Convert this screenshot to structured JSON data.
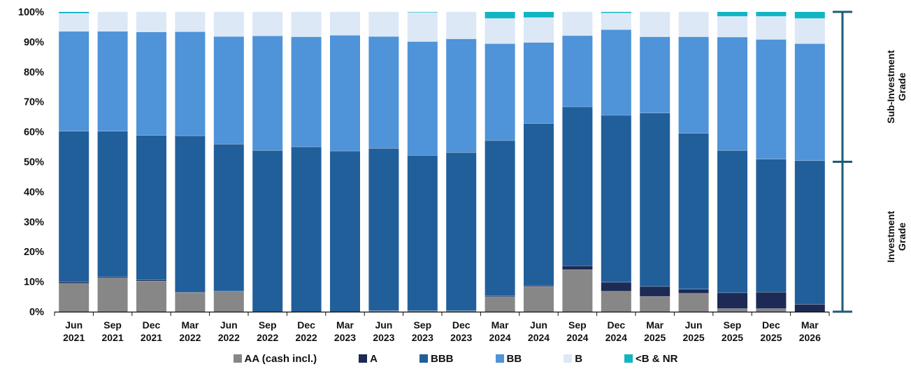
{
  "chart_data": {
    "type": "bar",
    "stacked": true,
    "categories": [
      [
        "Jun",
        "2021"
      ],
      [
        "Sep",
        "2021"
      ],
      [
        "Dec",
        "2021"
      ],
      [
        "Mar",
        "2022"
      ],
      [
        "Jun",
        "2022"
      ],
      [
        "Sep",
        "2022"
      ],
      [
        "Dec",
        "2022"
      ],
      [
        "Mar",
        "2023"
      ],
      [
        "Jun",
        "2023"
      ],
      [
        "Sep",
        "2023"
      ],
      [
        "Dec",
        "2023"
      ],
      [
        "Mar",
        "2024"
      ],
      [
        "Jun",
        "2024"
      ],
      [
        "Sep",
        "2024"
      ],
      [
        "Dec",
        "2024"
      ],
      [
        "Mar",
        "2025"
      ],
      [
        "Jun",
        "2025"
      ],
      [
        "Sep",
        "2025"
      ],
      [
        "Dec",
        "2025"
      ],
      [
        "Mar",
        "2026"
      ]
    ],
    "series": [
      {
        "name": "AA (cash incl.)",
        "color": "#878787",
        "values": [
          9.4,
          11.2,
          10.2,
          6.3,
          6.6,
          0,
          0,
          0,
          0.3,
          0.3,
          0.3,
          4.9,
          8.4,
          14.0,
          6.8,
          5.1,
          6.1,
          1.0,
          1.0,
          0
        ]
      },
      {
        "name": "A",
        "color": "#1c2a55",
        "values": [
          0.5,
          0.4,
          0.4,
          0.2,
          0.2,
          0,
          0,
          0,
          0,
          0,
          0,
          0.3,
          0.4,
          1.3,
          3.0,
          3.3,
          1.4,
          5.3,
          5.5,
          2.5
        ]
      },
      {
        "name": "BBB",
        "color": "#215f9a",
        "values": [
          50.3,
          48.6,
          48.2,
          52.2,
          49.1,
          53.8,
          55.0,
          53.6,
          54.2,
          51.8,
          52.8,
          51.9,
          54.0,
          53.0,
          55.7,
          57.9,
          52.0,
          47.5,
          44.4,
          47.9
        ]
      },
      {
        "name": "BB",
        "color": "#4f93d8",
        "values": [
          33.3,
          33.3,
          34.5,
          34.7,
          35.9,
          38.2,
          36.7,
          38.6,
          37.3,
          38.0,
          37.9,
          32.3,
          27.0,
          23.8,
          28.6,
          25.4,
          32.2,
          37.8,
          39.9,
          39.0
        ]
      },
      {
        "name": "B",
        "color": "#dce8f6",
        "values": [
          6.0,
          6.5,
          6.7,
          6.6,
          8.2,
          8.0,
          8.3,
          7.8,
          8.2,
          9.7,
          9.0,
          8.4,
          8.3,
          7.9,
          5.5,
          8.3,
          8.3,
          6.9,
          7.7,
          8.4
        ]
      },
      {
        "name": "<B & NR",
        "color": "#12b5c4",
        "values": [
          0.5,
          0,
          0,
          0,
          0,
          0,
          0,
          0,
          0,
          0.2,
          0,
          2.2,
          1.9,
          0,
          0.4,
          0,
          0,
          1.5,
          1.5,
          2.2
        ]
      }
    ],
    "y_ticks": [
      "0%",
      "10%",
      "20%",
      "30%",
      "40%",
      "50%",
      "60%",
      "70%",
      "80%",
      "90%",
      "100%"
    ],
    "ylim": [
      0,
      100
    ],
    "legend_position": "bottom",
    "brackets": [
      {
        "label_lines": [
          "Sub-Investment",
          "Grade"
        ],
        "from": 50,
        "to": 100
      },
      {
        "label_lines": [
          "Investment",
          "Grade"
        ],
        "from": 0,
        "to": 50
      }
    ],
    "bracket_color": "#1e5a78",
    "grid": false
  }
}
